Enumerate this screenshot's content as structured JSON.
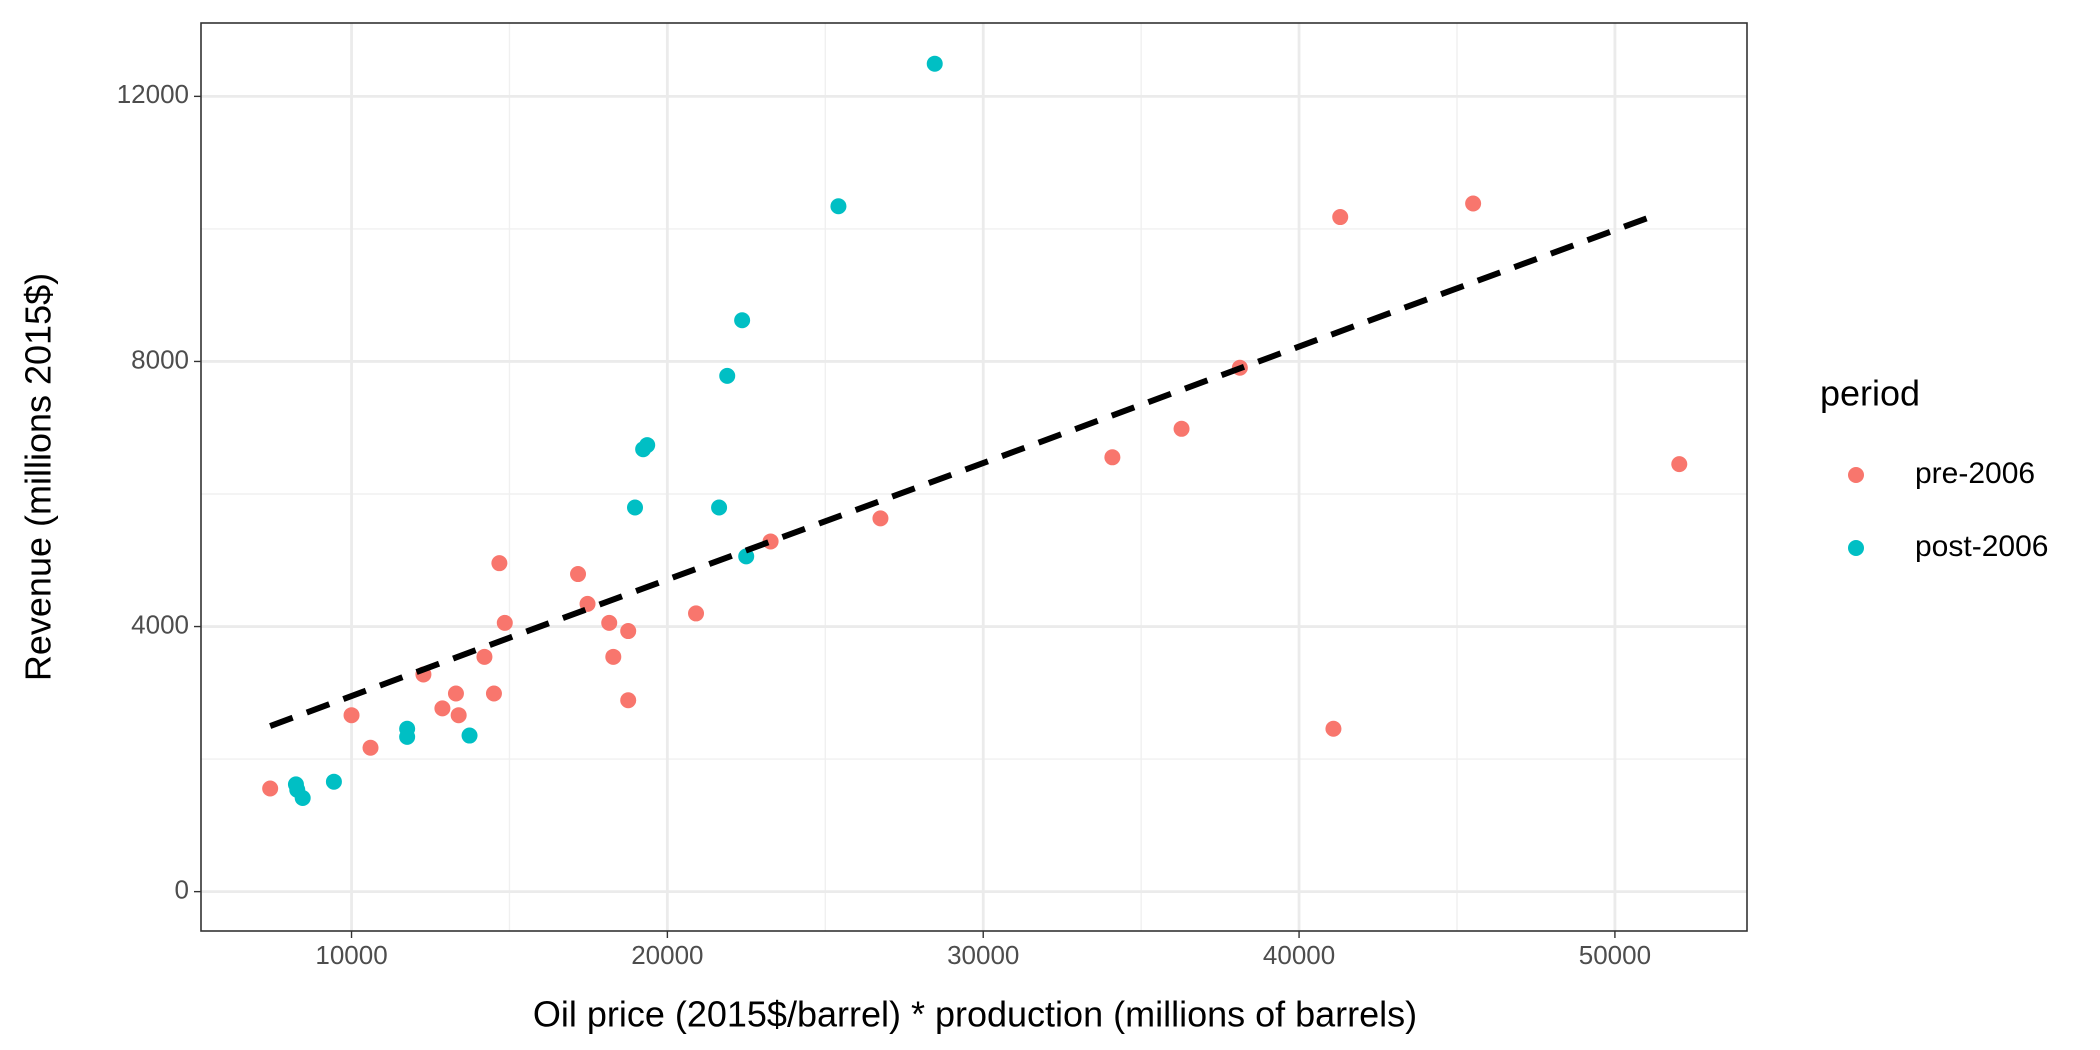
{
  "chart_data": {
    "type": "scatter",
    "x_label": "Oil price (2015$/barrel) * production (millions of barrels)",
    "y_label": "Revenue (millions 2015$)",
    "legend_title": "period",
    "legend_position": "right",
    "grid": true,
    "xlim": [
      5234,
      54182
    ],
    "xticks": [
      10000,
      20000,
      30000,
      40000,
      50000
    ],
    "ylim": [
      -594,
      13107
    ],
    "yticks": [
      0,
      4000,
      8000,
      12000
    ],
    "series": [
      {
        "name": "pre-2006",
        "color": "#f8766d",
        "x": [
          7424,
          10000,
          10601,
          12276,
          12877,
          13306,
          13392,
          14208,
          14509,
          14681,
          14852,
          17171,
          17472,
          18159,
          18288,
          18760,
          18760,
          20907,
          23268,
          26746,
          34089,
          36279,
          38125,
          41088,
          41303,
          45511,
          52038
        ],
        "values": [
          1556,
          2662,
          2171,
          3277,
          2765,
          2990,
          2662,
          3543,
          2990,
          4956,
          4055,
          4792,
          4342,
          4055,
          3543,
          3932,
          2888,
          4198,
          5284,
          5632,
          6554,
          6984,
          7905,
          2458,
          10179,
          10383,
          6451
        ]
      },
      {
        "name": "post-2006",
        "color": "#00bfc4",
        "x": [
          8240,
          8282,
          8454,
          9442,
          11761,
          11761,
          13736,
          18975,
          19233,
          19361,
          21637,
          21895,
          22367,
          22496,
          25416,
          28465
        ],
        "values": [
          1618,
          1536,
          1413,
          1659,
          2458,
          2335,
          2355,
          5796,
          6676,
          6738,
          5796,
          7782,
          8622,
          5059,
          10342,
          12493
        ]
      }
    ],
    "trend_line": {
      "color": "#000000",
      "x": [
        7424,
        51352
      ],
      "values": [
        2499,
        10220
      ]
    }
  }
}
